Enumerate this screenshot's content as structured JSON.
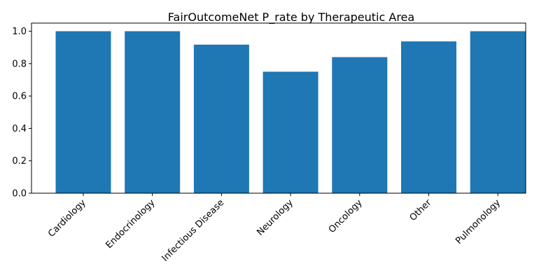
{
  "chart_data": {
    "type": "bar",
    "title": "FairOutcomeNet P_rate by Therapeutic Area",
    "xlabel": "",
    "ylabel": "",
    "categories": [
      "Cardiology",
      "Endocrinology",
      "Infectious Disease",
      "Neurology",
      "Oncology",
      "Other",
      "Pulmonology"
    ],
    "values": [
      1.0,
      1.0,
      0.917,
      0.75,
      0.84,
      0.937,
      1.0
    ],
    "ylim": [
      0,
      1.05
    ],
    "yticks": [
      "0.0",
      "0.2",
      "0.4",
      "0.6",
      "0.8",
      "1.0"
    ],
    "grid": false,
    "legend": "none",
    "bar_color": "#1f77b4"
  }
}
